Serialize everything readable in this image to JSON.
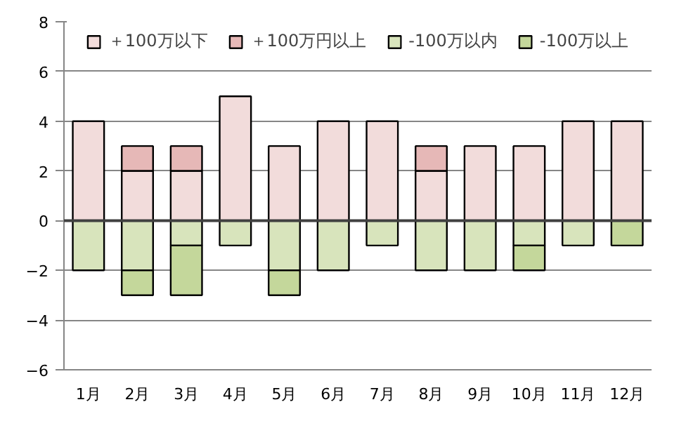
{
  "chart_data": {
    "type": "bar",
    "stacked": true,
    "categories": [
      "1月",
      "2月",
      "3月",
      "4月",
      "5月",
      "6月",
      "7月",
      "8月",
      "9月",
      "10月",
      "11月",
      "12月"
    ],
    "series": [
      {
        "name": "＋100万以下",
        "color": "#f2dcdb",
        "values": [
          4,
          2,
          2,
          5,
          3,
          4,
          4,
          2,
          3,
          3,
          4,
          4
        ]
      },
      {
        "name": "＋100万円以上",
        "color": "#e6b8b7",
        "values": [
          null,
          1,
          1,
          null,
          null,
          null,
          null,
          1,
          null,
          null,
          null,
          null
        ]
      },
      {
        "name": "-100万以内",
        "color": "#d8e4bc",
        "values": [
          -2,
          -2,
          -1,
          -1,
          -2,
          -2,
          -1,
          -2,
          -2,
          -1,
          -1,
          null
        ]
      },
      {
        "name": "-100万以上",
        "color": "#c4d79b",
        "values": [
          null,
          -1,
          -2,
          null,
          -1,
          null,
          null,
          null,
          null,
          -1,
          null,
          -1
        ]
      }
    ],
    "ylim": [
      -6,
      8
    ],
    "yticks": [
      -6,
      -4,
      -2,
      0,
      2,
      4,
      6,
      8
    ],
    "grid": "y",
    "legend": "top"
  }
}
